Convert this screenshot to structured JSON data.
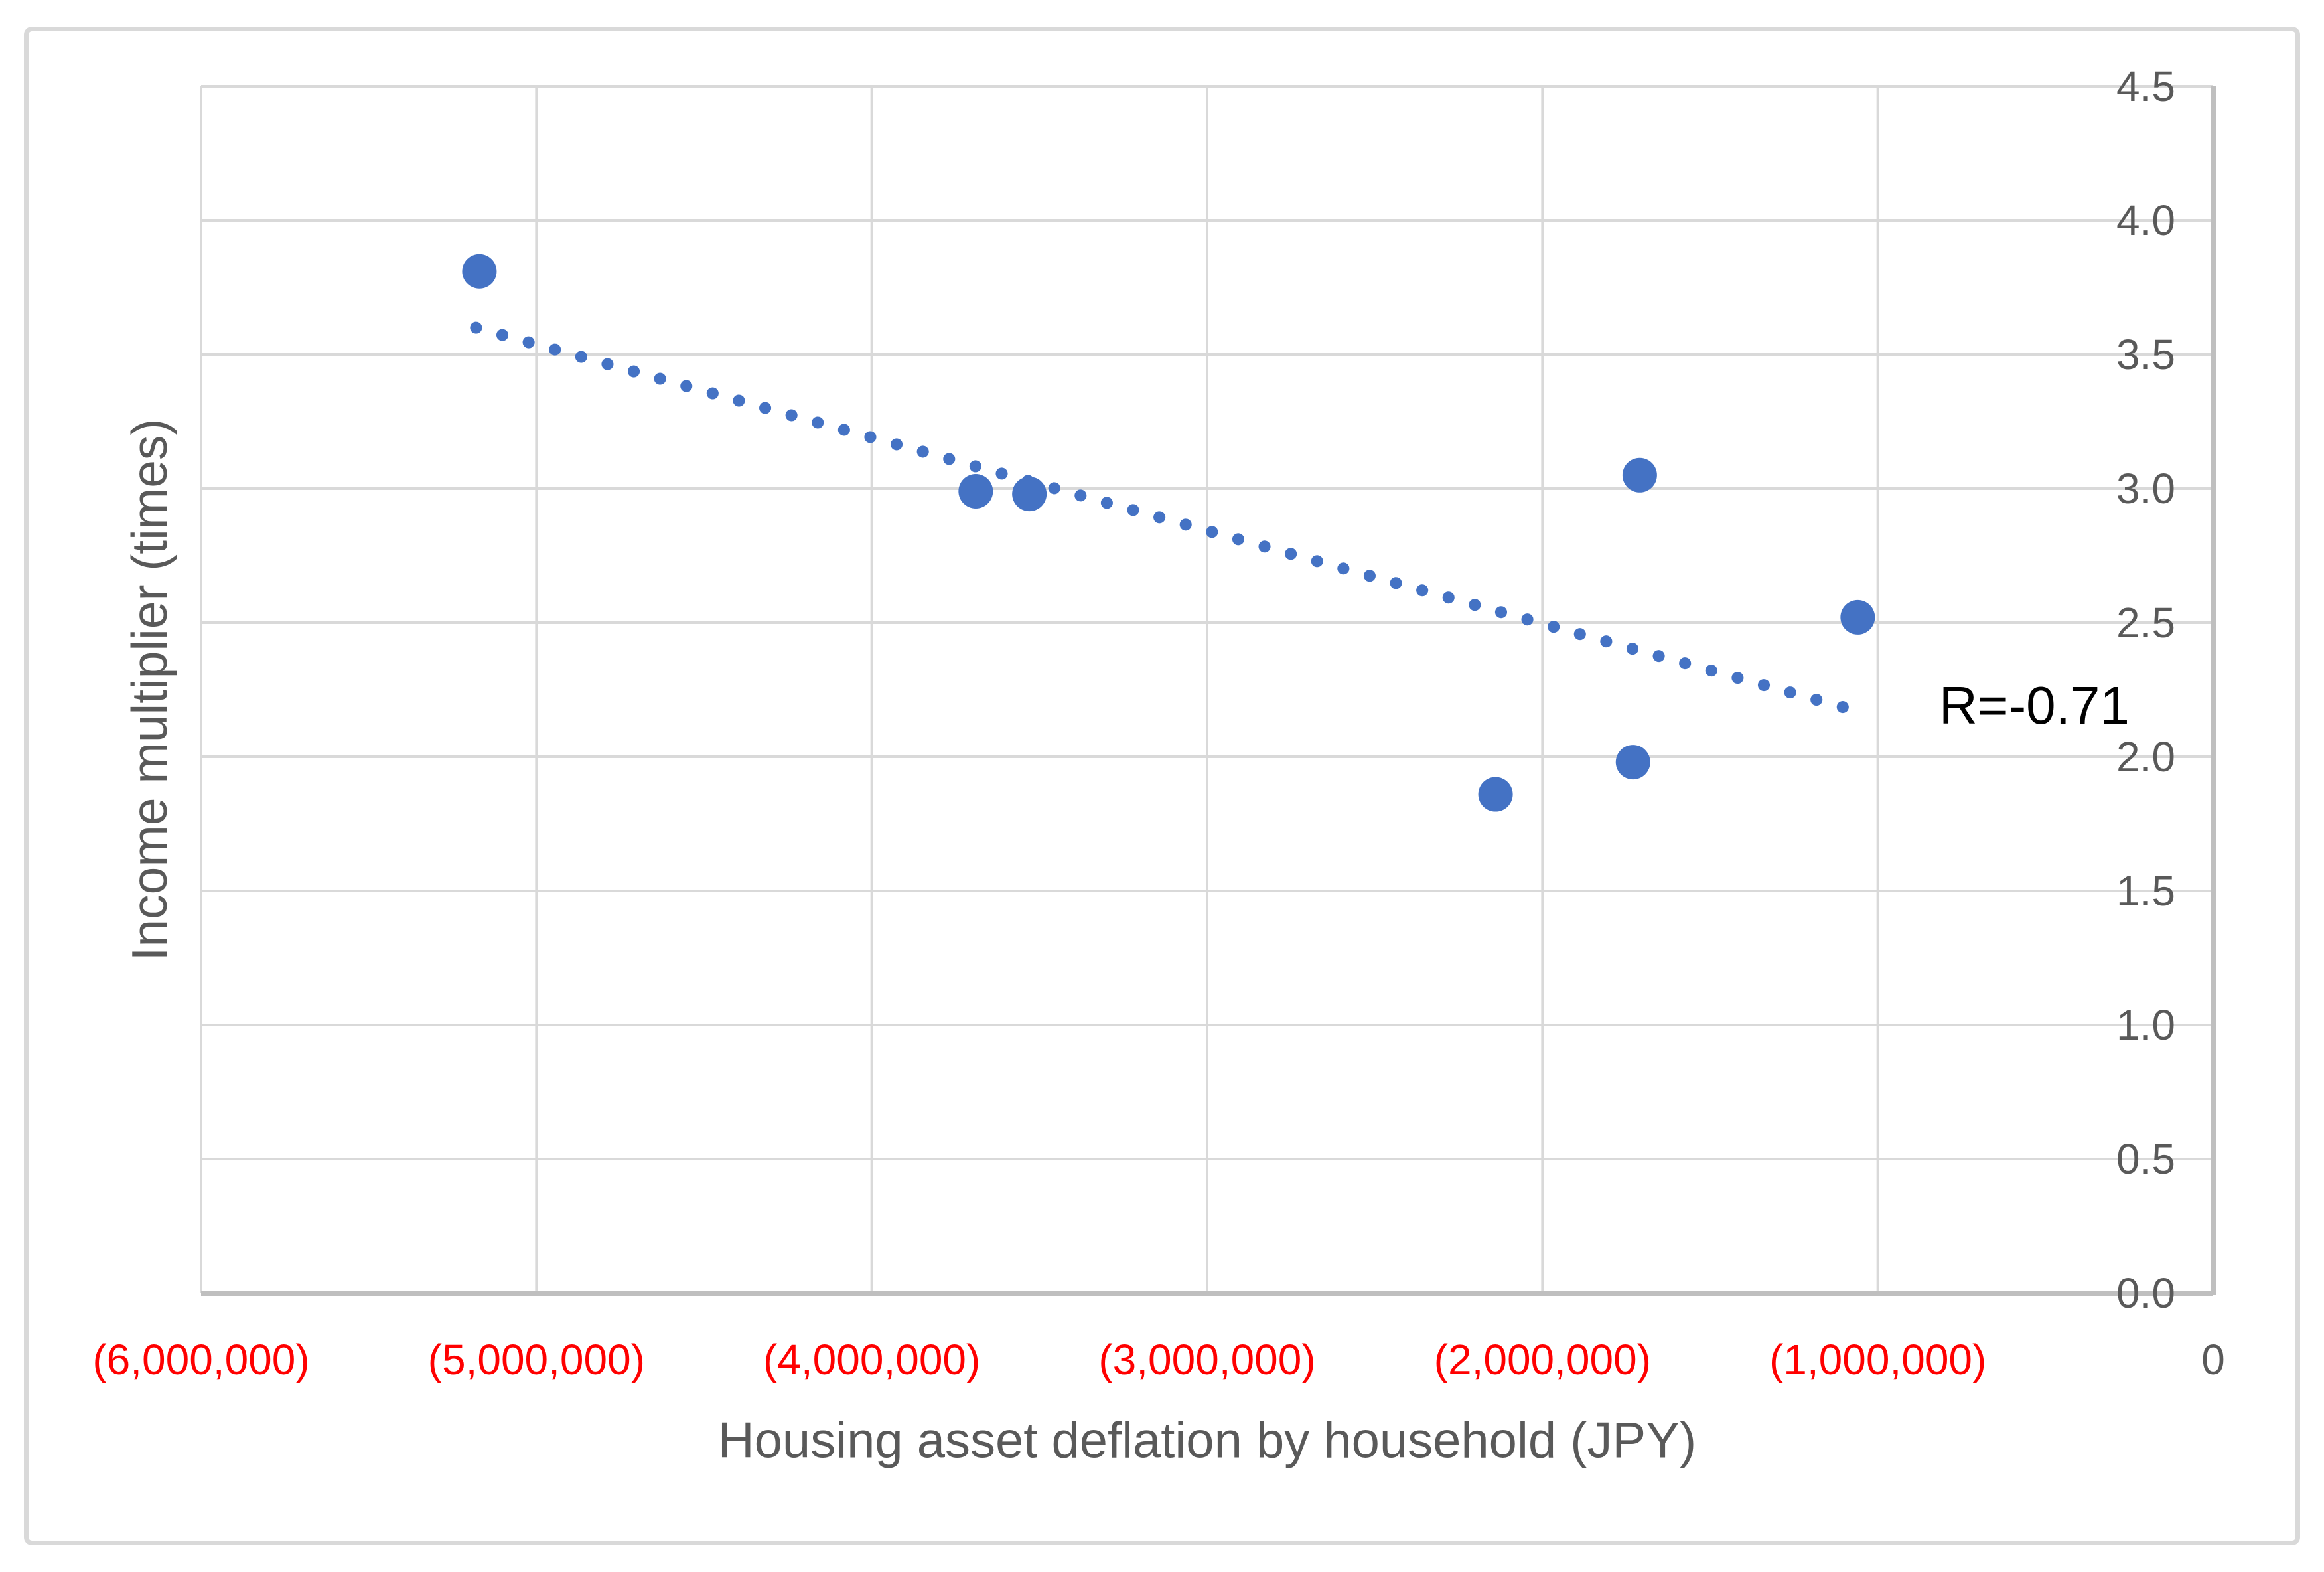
{
  "chart_data": {
    "type": "scatter",
    "title": "",
    "xlabel": "Housing asset deflation by household (JPY)",
    "ylabel": "Income multiplier (times)",
    "annotation": "R=-0.71",
    "xlim": [
      -6000000,
      0
    ],
    "ylim": [
      0,
      4.5
    ],
    "grid": true,
    "y_axis_side": "right",
    "x_ticks": [
      {
        "value": -6000000,
        "label": "(6,000,000)"
      },
      {
        "value": -5000000,
        "label": "(5,000,000)"
      },
      {
        "value": -4000000,
        "label": "(4,000,000)"
      },
      {
        "value": -3000000,
        "label": "(3,000,000)"
      },
      {
        "value": -2000000,
        "label": "(2,000,000)"
      },
      {
        "value": -1000000,
        "label": "(1,000,000)"
      },
      {
        "value": 0,
        "label": "0"
      }
    ],
    "y_ticks": [
      {
        "value": 0.0,
        "label": "0.0"
      },
      {
        "value": 0.5,
        "label": "0.5"
      },
      {
        "value": 1.0,
        "label": "1.0"
      },
      {
        "value": 1.5,
        "label": "1.5"
      },
      {
        "value": 2.0,
        "label": "2.0"
      },
      {
        "value": 2.5,
        "label": "2.5"
      },
      {
        "value": 3.0,
        "label": "3.0"
      },
      {
        "value": 3.5,
        "label": "3.5"
      },
      {
        "value": 4.0,
        "label": "4.0"
      },
      {
        "value": 4.5,
        "label": "4.5"
      }
    ],
    "points": [
      {
        "x": -5170000,
        "y": 3.81
      },
      {
        "x": -3690000,
        "y": 2.99
      },
      {
        "x": -3530000,
        "y": 2.98
      },
      {
        "x": -1710000,
        "y": 3.05
      },
      {
        "x": -1060000,
        "y": 2.52
      },
      {
        "x": -2140000,
        "y": 1.86
      },
      {
        "x": -1730000,
        "y": 1.98
      }
    ],
    "trendline": {
      "x1": -5180000,
      "y1": 3.6,
      "x2": -1060000,
      "y2": 2.17,
      "style": "dotted"
    },
    "colors": {
      "marker": "#4472C4",
      "trendline": "#4472C4",
      "gridline": "#D9D9D9",
      "axis_line": "#BFBFBF",
      "tick_label": "#595959",
      "negative_tick": "#FF0000",
      "annotation": "#000000",
      "border": "#D9D9D9"
    }
  }
}
